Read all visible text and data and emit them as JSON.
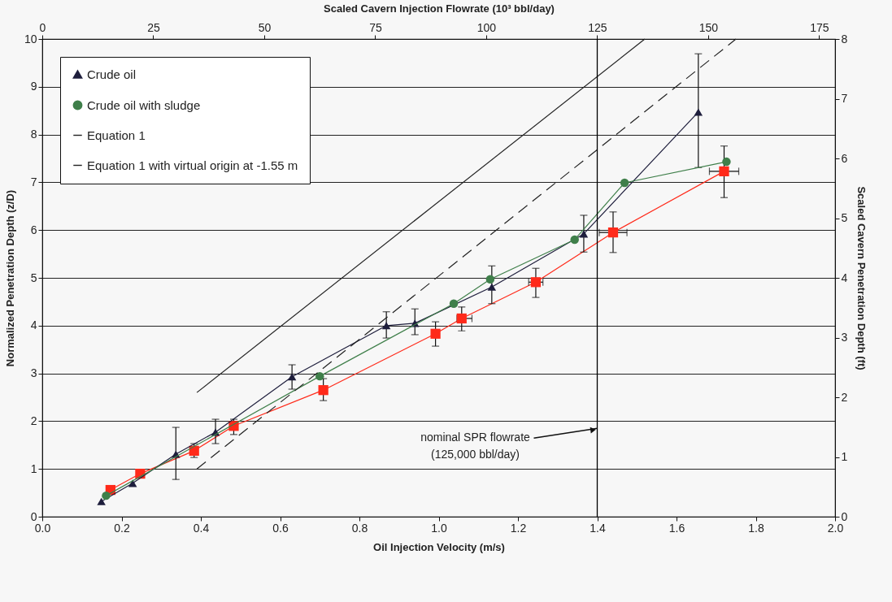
{
  "chart_data": {
    "type": "line",
    "xlabel": "Oil Injection Velocity (m/s)",
    "ylabel": "Normalized Penetration Depth (z/D)",
    "y2label": "Scaled Cavern Penetration Depth (ft)",
    "x2label": "Scaled Cavern Injection Flowrate (10³ bbl/day)",
    "xlim": [
      0,
      2
    ],
    "xticks": [
      {
        "value": 0,
        "label": "0.0"
      },
      0.2,
      0.4,
      0.6,
      0.8,
      {
        "value": 1,
        "label": "1.0"
      },
      1.2,
      1.4,
      1.6,
      1.8,
      {
        "value": 2,
        "label": "2.0"
      }
    ],
    "ylim": [
      0,
      10
    ],
    "yticks": [
      0,
      1,
      2,
      3,
      4,
      5,
      6,
      7,
      8,
      9,
      10
    ],
    "y2lim": [
      0,
      8
    ],
    "y2ticks": [
      0,
      1,
      2,
      3,
      4,
      5,
      6,
      7,
      8
    ],
    "x2lim": [
      0,
      178.6
    ],
    "x2ticks": [
      0,
      25,
      50,
      75,
      100,
      125,
      150,
      175
    ],
    "grid": "y",
    "legend": "top left",
    "ref_lines": [
      {
        "axis": "x",
        "value": 1.4,
        "color": "#000000"
      }
    ],
    "annotations": [
      {
        "text": "nominal SPR flowrate (125,000 bbl/day)",
        "x": 1.4,
        "y": 1.85
      }
    ],
    "series": [
      {
        "color": "#ff2a1a",
        "marker": "square",
        "line_style": "solid",
        "x": [
          0.172,
          0.247,
          0.383,
          0.483,
          0.709,
          0.992,
          1.058,
          1.245,
          1.44,
          1.72
        ],
        "values": [
          0.56,
          0.9,
          1.38,
          1.9,
          2.65,
          3.83,
          4.15,
          4.91,
          5.95,
          7.23
        ],
        "errors": [
          null,
          null,
          [
            1.24,
            1.53
          ],
          [
            1.72,
            2.04
          ],
          [
            2.43,
            2.89
          ],
          [
            3.57,
            4.08
          ],
          [
            3.89,
            4.39
          ],
          [
            4.59,
            5.2
          ],
          [
            5.53,
            6.38
          ],
          [
            6.68,
            7.76
          ]
        ],
        "xerrors": [
          null,
          null,
          null,
          null,
          null,
          null,
          [
            1.046,
            1.084
          ],
          [
            1.227,
            1.263
          ],
          [
            1.405,
            1.475
          ],
          [
            1.683,
            1.757
          ]
        ]
      },
      {
        "name": "Crude oil",
        "color": "#1e1e3c",
        "marker": "triangle",
        "line_style": "solid",
        "x": [
          0.149,
          0.228,
          0.337,
          0.437,
          0.63,
          0.868,
          0.94,
          1.134,
          1.366,
          1.655
        ],
        "values": [
          0.32,
          0.7,
          1.31,
          1.77,
          2.93,
          4.0,
          4.05,
          4.81,
          5.92,
          8.47
        ],
        "errors": [
          null,
          null,
          [
            0.78,
            1.87
          ],
          [
            1.53,
            2.04
          ],
          [
            2.67,
            3.18
          ],
          [
            3.74,
            4.29
          ],
          [
            3.81,
            4.35
          ],
          [
            4.46,
            5.25
          ],
          [
            5.54,
            6.31
          ],
          [
            7.31,
            9.69
          ]
        ]
      },
      {
        "name": "Crude oil with sludge",
        "color": "#3f7f4a",
        "marker": "circle",
        "line_style": "solid",
        "x": [
          0.161,
          0.7,
          1.038,
          1.13,
          1.343,
          1.469,
          1.726
        ],
        "values": [
          0.44,
          2.94,
          4.46,
          4.97,
          5.8,
          6.99,
          7.43
        ]
      },
      {
        "name": "Equation 1",
        "color": "#222222",
        "marker": "none",
        "line_style": "solid",
        "x": [
          0.39,
          1.52
        ],
        "values": [
          2.6,
          10
        ]
      },
      {
        "name": "Equation 1 with virtual origin at -1.55 m",
        "color": "#222222",
        "marker": "none",
        "line_style": "dashed",
        "x": [
          0.39,
          1.75
        ],
        "values": [
          1.0,
          10
        ]
      }
    ]
  }
}
